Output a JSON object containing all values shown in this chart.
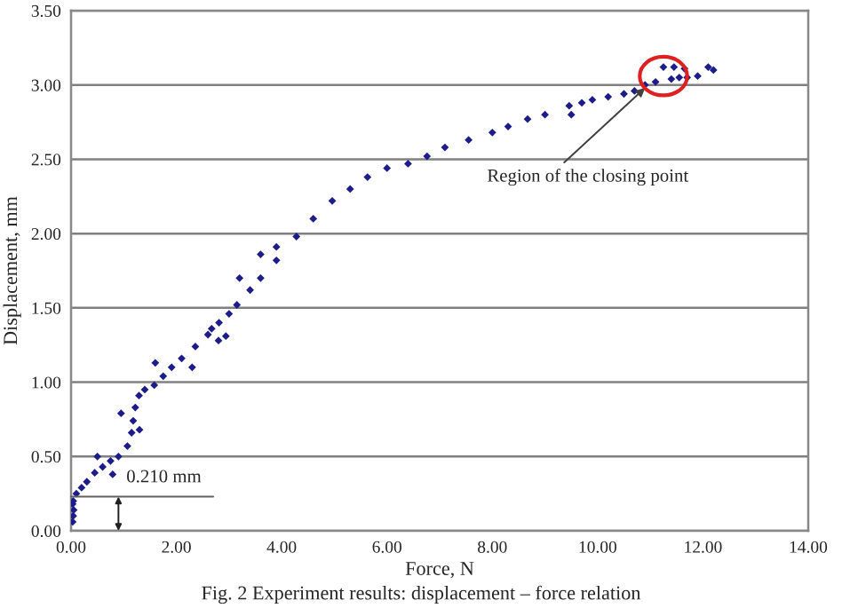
{
  "chart_data": {
    "type": "scatter",
    "xlabel": "Force, N",
    "ylabel": "Displacement, mm",
    "xlim": [
      0,
      14
    ],
    "xticks": [
      {
        "value": 0,
        "label": "0.00"
      },
      {
        "value": 2,
        "label": "2.00"
      },
      {
        "value": 4,
        "label": "4.00"
      },
      {
        "value": 6,
        "label": "6.00"
      },
      {
        "value": 8,
        "label": "8.00"
      },
      {
        "value": 10,
        "label": "10.00"
      },
      {
        "value": 12,
        "label": "12.00"
      },
      {
        "value": 14,
        "label": "14.00"
      }
    ],
    "ylim": [
      0,
      3.5
    ],
    "yticks": [
      {
        "value": 0,
        "label": "0.00"
      },
      {
        "value": 0.5,
        "label": "0.50"
      },
      {
        "value": 1,
        "label": "1.00"
      },
      {
        "value": 1.5,
        "label": "1.50"
      },
      {
        "value": 2,
        "label": "2.00"
      },
      {
        "value": 2.5,
        "label": "2.50"
      },
      {
        "value": 3,
        "label": "3.00"
      },
      {
        "value": 3.5,
        "label": "3.50"
      }
    ],
    "grid": "y",
    "marker": "diamond",
    "series": [
      {
        "color": "#1c1c8a",
        "x": [
          0.03,
          0.04,
          0.05,
          0.03,
          0.04,
          0.1,
          0.2,
          0.3,
          0.45,
          0.6,
          0.75,
          0.9,
          1.07,
          1.15,
          1.18,
          1.22,
          1.29,
          1.4,
          1.58,
          1.75,
          1.91,
          2.1,
          2.36,
          2.6,
          2.81,
          3.0,
          3.15,
          3.4,
          3.6,
          3.9,
          4.28,
          4.6,
          4.96,
          5.3,
          5.63,
          6.0,
          6.4,
          6.76,
          7.1,
          7.55,
          8.0,
          8.3,
          8.67,
          9.0,
          9.46,
          9.7,
          9.9,
          10.2,
          10.5,
          10.7,
          10.9,
          11.1,
          11.4,
          11.55,
          11.7,
          11.9,
          11.25,
          11.45,
          11.65,
          12.1,
          12.2,
          0.5,
          0.79,
          0.95,
          1.3,
          1.6,
          2.3,
          2.67,
          2.8,
          2.94,
          3.2,
          3.6,
          3.9,
          9.5
        ],
        "values": [
          0.06,
          0.1,
          0.14,
          0.18,
          0.2,
          0.25,
          0.29,
          0.33,
          0.39,
          0.43,
          0.47,
          0.5,
          0.57,
          0.66,
          0.74,
          0.83,
          0.91,
          0.95,
          0.98,
          1.04,
          1.1,
          1.16,
          1.24,
          1.32,
          1.4,
          1.46,
          1.52,
          1.62,
          1.7,
          1.82,
          1.98,
          2.1,
          2.22,
          2.3,
          2.38,
          2.44,
          2.47,
          2.52,
          2.58,
          2.63,
          2.68,
          2.72,
          2.77,
          2.8,
          2.86,
          2.88,
          2.9,
          2.92,
          2.94,
          2.96,
          3.0,
          3.02,
          3.04,
          3.05,
          3.05,
          3.06,
          3.12,
          3.12,
          3.11,
          3.12,
          3.1,
          0.5,
          0.38,
          0.79,
          0.68,
          1.13,
          1.1,
          1.36,
          1.28,
          1.31,
          1.7,
          1.86,
          1.91,
          2.8
        ]
      }
    ],
    "annotations": [
      {
        "text": "Region of the closing point",
        "x": 10.9,
        "y": 2.98
      },
      {
        "text": "0.210 mm",
        "x": 0.9,
        "y": 0.21
      },
      "Fig. 2 Experiment results: displacement – force relation"
    ]
  }
}
